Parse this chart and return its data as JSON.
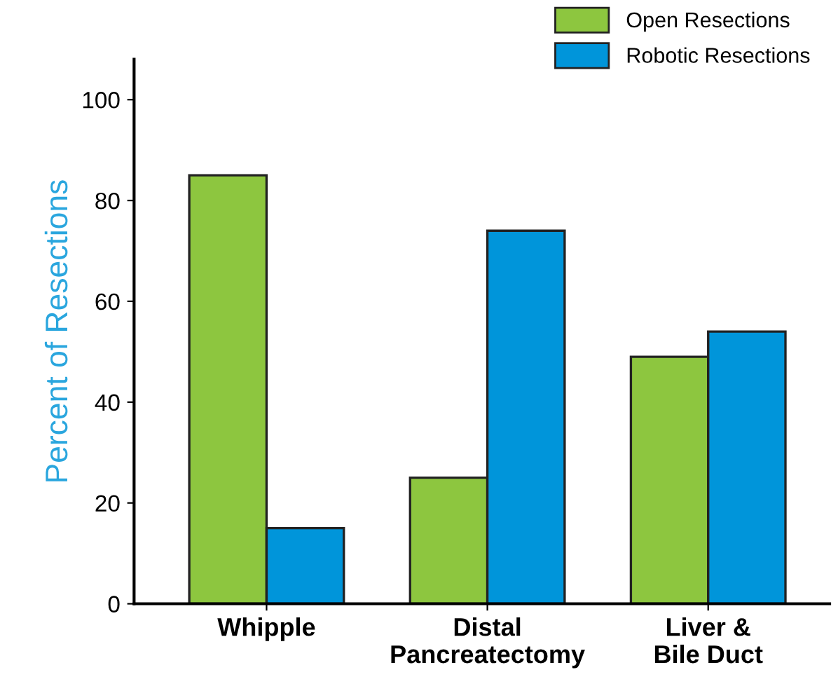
{
  "chart_data": {
    "type": "bar",
    "ylabel": "Percent of Resections",
    "categories": [
      "Whipple",
      "Distal\nPancreatectomy",
      "Liver &\nBile Duct"
    ],
    "series": [
      {
        "name": "Open Resections",
        "color": "#8dc63f",
        "values": [
          85,
          25,
          49
        ]
      },
      {
        "name": "Robotic Resections",
        "color": "#0095da",
        "values": [
          15,
          74,
          54
        ]
      }
    ],
    "ylim": [
      0,
      108
    ],
    "yticks": [
      0,
      20,
      40,
      60,
      80,
      100
    ],
    "grid": false,
    "legend": "top right"
  }
}
